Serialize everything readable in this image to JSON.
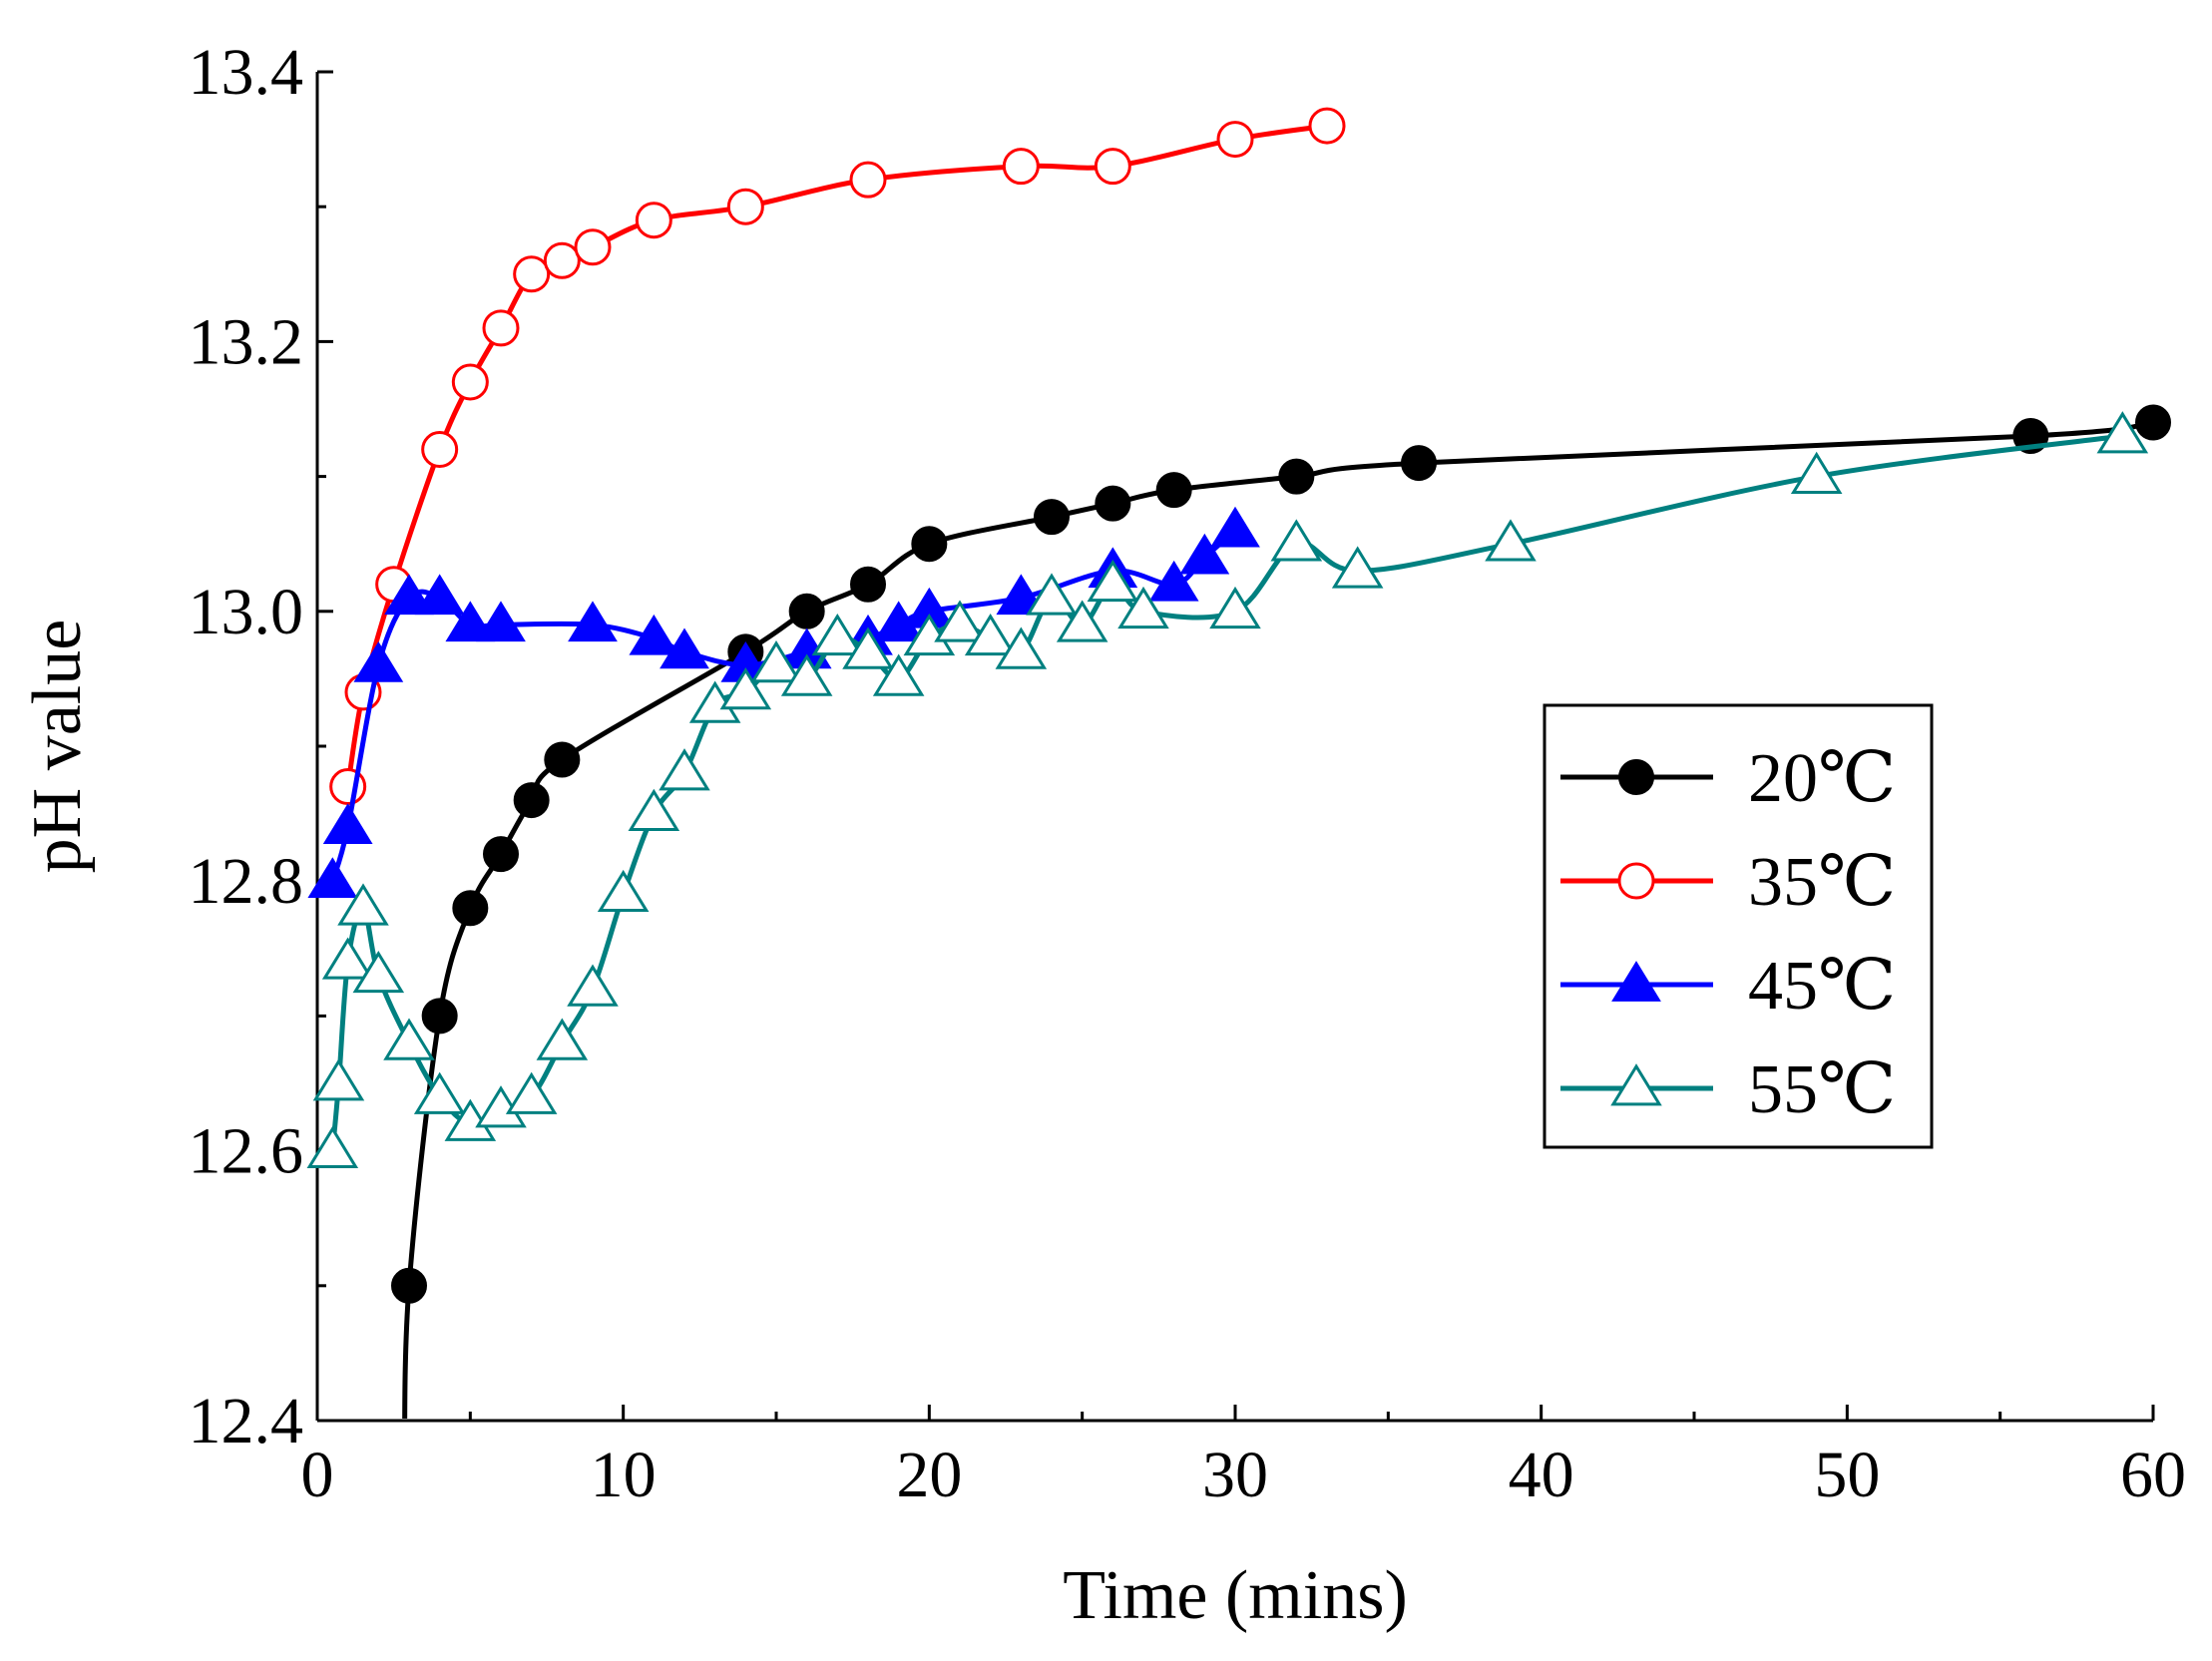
{
  "chart_data": {
    "type": "line",
    "title": "",
    "xlabel": "Time (mins)",
    "ylabel": "pH value",
    "xlim": [
      0,
      60
    ],
    "ylim": [
      12.4,
      13.4
    ],
    "x_ticks": [
      0,
      10,
      20,
      30,
      40,
      50,
      60
    ],
    "x_tick_labels": [
      "0",
      "10",
      "20",
      "30",
      "40",
      "50",
      "60"
    ],
    "y_ticks": [
      12.4,
      12.6,
      12.8,
      13.0,
      13.2,
      13.4
    ],
    "y_tick_labels": [
      "12.4",
      "12.6",
      "12.8",
      "13.0",
      "13.2",
      "13.4"
    ],
    "grid": false,
    "legend_position": "right-middle",
    "series": [
      {
        "name": "20℃",
        "color": "#000000",
        "marker": "filled-circle",
        "x": [
          3,
          4,
          5,
          6,
          7,
          8,
          14,
          16,
          18,
          20,
          24,
          26,
          28,
          32,
          36,
          56,
          60
        ],
        "y": [
          12.5,
          12.7,
          12.78,
          12.82,
          12.86,
          12.89,
          12.97,
          13.0,
          13.02,
          13.05,
          13.07,
          13.08,
          13.09,
          13.1,
          13.11,
          13.13,
          13.14
        ]
      },
      {
        "name": "35℃",
        "color": "#ff0000",
        "marker": "open-circle",
        "x": [
          1,
          1.5,
          2.5,
          4,
          5,
          6,
          7,
          8,
          9,
          11,
          14,
          18,
          23,
          26,
          30,
          33
        ],
        "y": [
          12.87,
          12.94,
          13.02,
          13.12,
          13.17,
          13.21,
          13.25,
          13.26,
          13.27,
          13.29,
          13.3,
          13.32,
          13.33,
          13.33,
          13.35,
          13.36
        ]
      },
      {
        "name": "45℃",
        "color": "#0000ff",
        "marker": "filled-triangle",
        "x": [
          0.5,
          1,
          2,
          3,
          4,
          5,
          6,
          9,
          11,
          12,
          14,
          16,
          18,
          19,
          20,
          23,
          26,
          28,
          29,
          30
        ],
        "y": [
          12.8,
          12.84,
          12.96,
          13.01,
          13.01,
          12.99,
          12.99,
          12.99,
          12.98,
          12.97,
          12.96,
          12.97,
          12.98,
          12.99,
          13.0,
          13.01,
          13.03,
          13.02,
          13.04,
          13.06
        ]
      },
      {
        "name": "55℃",
        "color": "#008080",
        "marker": "open-triangle",
        "x": [
          0.5,
          0.7,
          1,
          1.5,
          2,
          3,
          4,
          5,
          6,
          7,
          8,
          9,
          10,
          11,
          12,
          13,
          14,
          15,
          16,
          17,
          18,
          19,
          20,
          21,
          22,
          23,
          24,
          25,
          26,
          27,
          30,
          32,
          34,
          39,
          49,
          59
        ],
        "y": [
          12.6,
          12.65,
          12.74,
          12.78,
          12.73,
          12.68,
          12.64,
          12.62,
          12.63,
          12.64,
          12.68,
          12.72,
          12.79,
          12.85,
          12.88,
          12.93,
          12.94,
          12.96,
          12.95,
          12.98,
          12.97,
          12.95,
          12.98,
          12.99,
          12.98,
          12.97,
          13.01,
          12.99,
          13.02,
          13.0,
          13.0,
          13.05,
          13.03,
          13.05,
          13.1,
          13.13
        ]
      }
    ]
  }
}
